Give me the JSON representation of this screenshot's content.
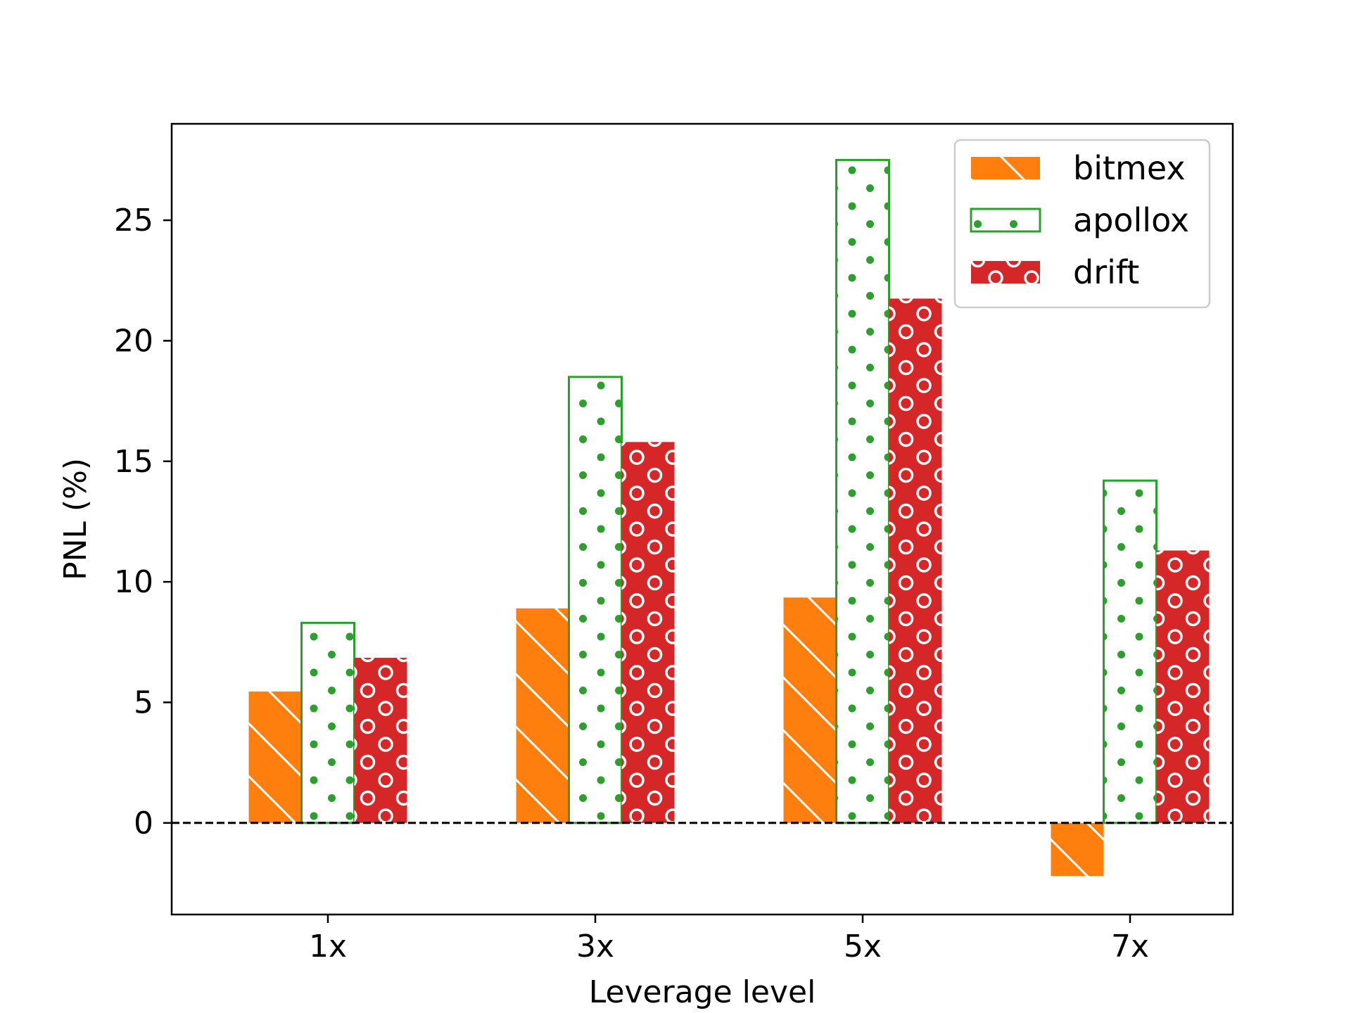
{
  "colors": {
    "bitmex": "#ff7f0e",
    "apollox": "#2ca02c",
    "drift": "#d62728",
    "frame": "#000000",
    "background": "#ffffff"
  },
  "chart_data": {
    "type": "bar",
    "title": "",
    "xlabel": "Leverage level",
    "ylabel": "PNL (%)",
    "categories": [
      "1x",
      "3x",
      "5x",
      "7x"
    ],
    "ylim": [
      -3.8,
      29
    ],
    "yticks": [
      0,
      5,
      10,
      15,
      20,
      25
    ],
    "ytick_labels": [
      "0",
      "5",
      "10",
      "15",
      "20",
      "25"
    ],
    "grid": false,
    "legend_position": "top-right",
    "reference_line": {
      "y": 0,
      "style": "dashed"
    },
    "series": [
      {
        "name": "bitmex",
        "values": [
          5.45,
          8.9,
          9.35,
          -2.2
        ],
        "pattern": "diagonal-hatch",
        "style": "filled"
      },
      {
        "name": "apollox",
        "values": [
          8.3,
          18.5,
          27.5,
          14.2
        ],
        "pattern": "dots",
        "style": "outline"
      },
      {
        "name": "drift",
        "values": [
          6.85,
          15.8,
          21.75,
          11.3
        ],
        "pattern": "rings",
        "style": "filled"
      }
    ]
  }
}
